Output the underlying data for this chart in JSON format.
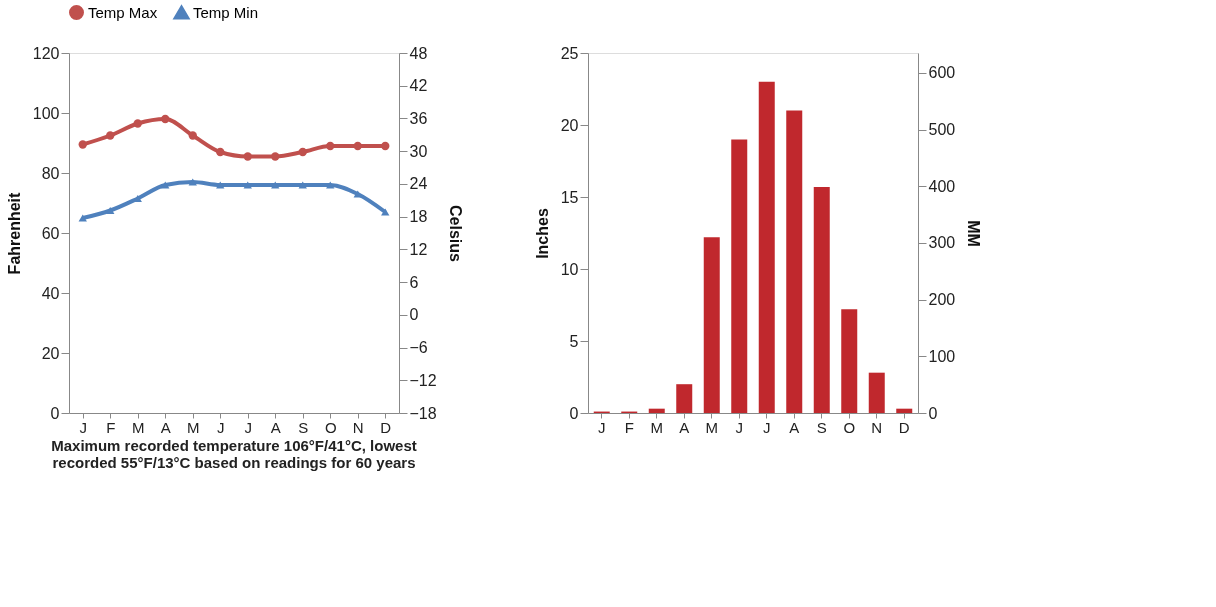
{
  "chart_data": [
    {
      "type": "line",
      "categories": [
        "J",
        "F",
        "M",
        "A",
        "M",
        "J",
        "J",
        "A",
        "S",
        "O",
        "N",
        "D"
      ],
      "series": [
        {
          "name": "Temp Max",
          "color": "#c0504d",
          "marker": "circle",
          "values": [
            89.5,
            92.5,
            96.5,
            98,
            92.5,
            87,
            85.5,
            85.5,
            87,
            89,
            89,
            89
          ]
        },
        {
          "name": "Temp Min",
          "color": "#4f81bd",
          "marker": "triangle",
          "values": [
            65,
            67.5,
            71.5,
            76,
            77,
            76,
            76,
            76,
            76,
            76,
            73,
            67
          ]
        }
      ],
      "ylim": [
        0,
        120
      ],
      "yticks": [
        0,
        20,
        40,
        60,
        80,
        100,
        120
      ],
      "ylabel": "Fahrenheit",
      "y2lim": [
        -18,
        48
      ],
      "y2ticks": [
        -18,
        -12,
        -6,
        0,
        6,
        12,
        18,
        24,
        30,
        36,
        42,
        48
      ],
      "y2label": "Celsius",
      "legend": "top",
      "line_style": "solid",
      "annotations": [
        "Maximum recorded temperature 106°F/41°C, lowest recorded 55°F/13°C based on readings for 60 years"
      ]
    },
    {
      "type": "bar",
      "categories": [
        "J",
        "F",
        "M",
        "A",
        "M",
        "J",
        "J",
        "A",
        "S",
        "O",
        "N",
        "D"
      ],
      "values": [
        0.1,
        0.1,
        0.3,
        2.0,
        12.2,
        19,
        23,
        21,
        15.7,
        7.2,
        2.8,
        0.3
      ],
      "color": "#c0282d",
      "ylim": [
        0,
        25
      ],
      "yticks": [
        0,
        5,
        10,
        15,
        20,
        25
      ],
      "ylabel": "Inches",
      "y2lim": [
        0,
        635
      ],
      "y2ticks": [
        0,
        100,
        200,
        300,
        400,
        500,
        600
      ],
      "y2label": "MM"
    }
  ]
}
